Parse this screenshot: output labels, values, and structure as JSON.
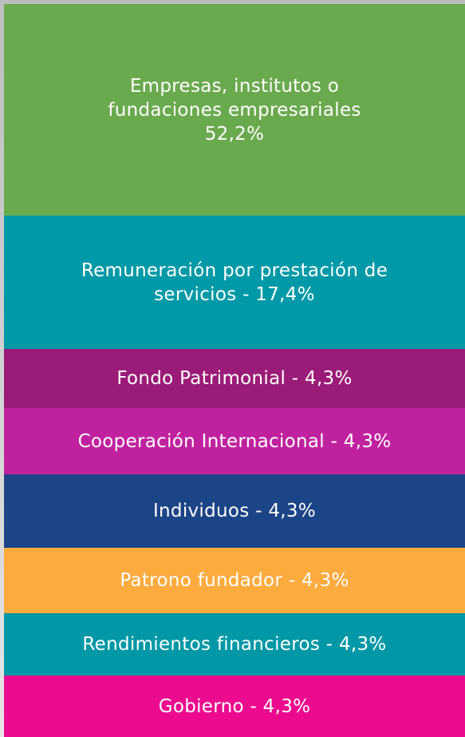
{
  "blocks": [
    {
      "text": "Empresas, institutos o fundaciones empresariales",
      "value": "52,2%",
      "color": "#6aaa4f"
    },
    {
      "text": "Remuneración por prestación de servicios - 17,4%",
      "color": "#0099a7"
    },
    {
      "text": "Fondo Patrimonial - 4,3%",
      "color": "#9b1b78"
    },
    {
      "text": "Cooperación Internacional - 4,3%",
      "color": "#c0229f"
    },
    {
      "text": "Individuos - 4,3%",
      "color": "#1c4588"
    },
    {
      "text": "Patrono fundador - 4,3%",
      "color": "#fcab3f"
    },
    {
      "text": "Rendimientos financieros - 4,3%",
      "color": "#0098a6"
    },
    {
      "text": "Gobierno - 4,3%",
      "color": "#ec0b8e"
    }
  ]
}
